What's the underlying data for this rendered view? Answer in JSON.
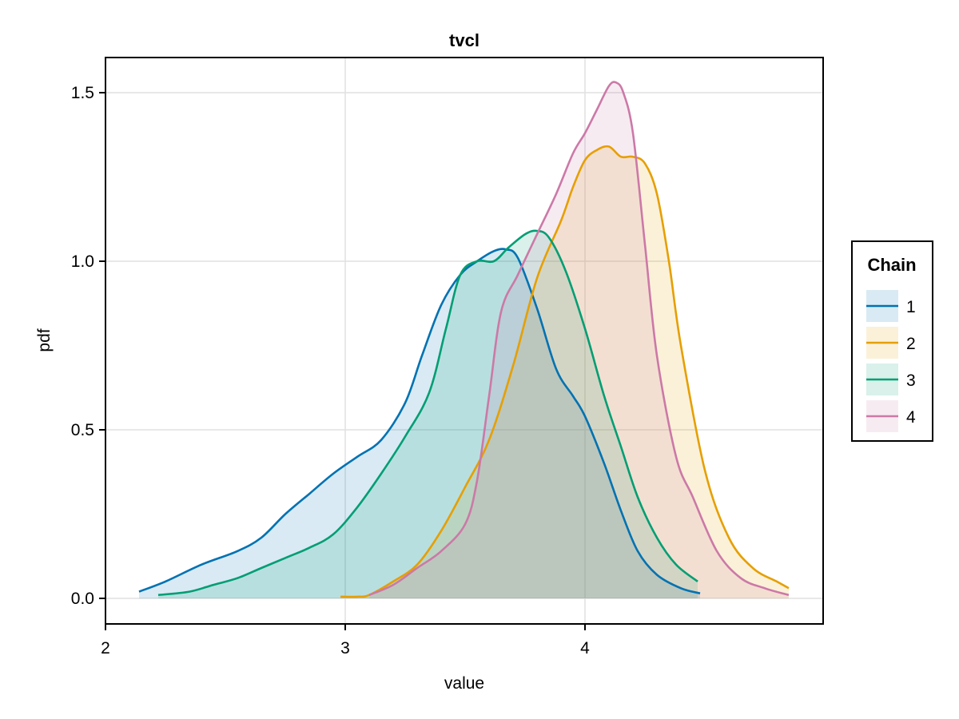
{
  "chart_data": {
    "type": "area",
    "subtype": "density",
    "title": "tvcl",
    "xlabel": "value",
    "ylabel": "pdf",
    "xlim": [
      2.0,
      4.99
    ],
    "ylim": [
      -0.075,
      1.61
    ],
    "xticks": [
      2,
      3,
      4
    ],
    "xtick_labels": [
      "2",
      "3",
      "4"
    ],
    "yticks": [
      0.0,
      0.5,
      1.0,
      1.5
    ],
    "ytick_labels": [
      "0.0",
      "0.5",
      "1.0",
      "1.5"
    ],
    "grid": true,
    "legend": {
      "title": "Chain",
      "position": "right",
      "entries": [
        "1",
        "2",
        "3",
        "4"
      ]
    },
    "series": [
      {
        "name": "1",
        "color": "#0072b2",
        "fill": "#0072b2",
        "x": [
          2.14,
          2.25,
          2.4,
          2.55,
          2.65,
          2.75,
          2.85,
          2.95,
          3.05,
          3.15,
          3.25,
          3.32,
          3.4,
          3.48,
          3.55,
          3.62,
          3.67,
          3.72,
          3.8,
          3.88,
          3.95,
          4.0,
          4.08,
          4.15,
          4.22,
          4.3,
          4.4,
          4.48
        ],
        "y": [
          0.02,
          0.05,
          0.1,
          0.14,
          0.18,
          0.25,
          0.31,
          0.37,
          0.42,
          0.47,
          0.58,
          0.72,
          0.87,
          0.96,
          1.0,
          1.03,
          1.035,
          1.01,
          0.86,
          0.68,
          0.6,
          0.54,
          0.4,
          0.26,
          0.14,
          0.07,
          0.03,
          0.015
        ]
      },
      {
        "name": "2",
        "color": "#e69f00",
        "fill": "#e69f00",
        "x": [
          2.98,
          3.05,
          3.1,
          3.2,
          3.3,
          3.4,
          3.5,
          3.6,
          3.7,
          3.8,
          3.9,
          3.95,
          4.0,
          4.05,
          4.1,
          4.15,
          4.2,
          4.25,
          4.3,
          4.35,
          4.4,
          4.5,
          4.6,
          4.7,
          4.8,
          4.85
        ],
        "y": [
          0.005,
          0.005,
          0.01,
          0.05,
          0.1,
          0.2,
          0.33,
          0.47,
          0.69,
          0.95,
          1.12,
          1.22,
          1.3,
          1.33,
          1.34,
          1.31,
          1.31,
          1.29,
          1.2,
          1.0,
          0.75,
          0.38,
          0.18,
          0.09,
          0.05,
          0.03
        ]
      },
      {
        "name": "3",
        "color": "#009e73",
        "fill": "#009e73",
        "x": [
          2.22,
          2.35,
          2.45,
          2.55,
          2.65,
          2.75,
          2.85,
          2.95,
          3.05,
          3.15,
          3.25,
          3.35,
          3.42,
          3.48,
          3.55,
          3.62,
          3.68,
          3.75,
          3.8,
          3.85,
          3.92,
          4.0,
          4.08,
          4.15,
          4.22,
          4.3,
          4.38,
          4.47
        ],
        "y": [
          0.01,
          0.02,
          0.04,
          0.06,
          0.09,
          0.12,
          0.15,
          0.19,
          0.27,
          0.37,
          0.48,
          0.61,
          0.8,
          0.96,
          1.0,
          1.0,
          1.04,
          1.08,
          1.09,
          1.07,
          0.97,
          0.8,
          0.6,
          0.45,
          0.3,
          0.18,
          0.1,
          0.05
        ]
      },
      {
        "name": "4",
        "color": "#cc79a7",
        "fill": "#cc79a7",
        "x": [
          3.1,
          3.2,
          3.3,
          3.4,
          3.5,
          3.55,
          3.6,
          3.65,
          3.72,
          3.8,
          3.88,
          3.95,
          4.0,
          4.05,
          4.1,
          4.13,
          4.16,
          4.2,
          4.25,
          4.3,
          4.38,
          4.45,
          4.55,
          4.65,
          4.75,
          4.85
        ],
        "y": [
          0.01,
          0.04,
          0.09,
          0.14,
          0.22,
          0.35,
          0.6,
          0.85,
          0.96,
          1.08,
          1.2,
          1.32,
          1.38,
          1.45,
          1.52,
          1.53,
          1.5,
          1.38,
          1.05,
          0.72,
          0.42,
          0.3,
          0.14,
          0.06,
          0.03,
          0.01
        ]
      }
    ]
  },
  "colors": {
    "background": "#ffffff",
    "grid": "#e0e0e0",
    "axis": "#000000"
  }
}
